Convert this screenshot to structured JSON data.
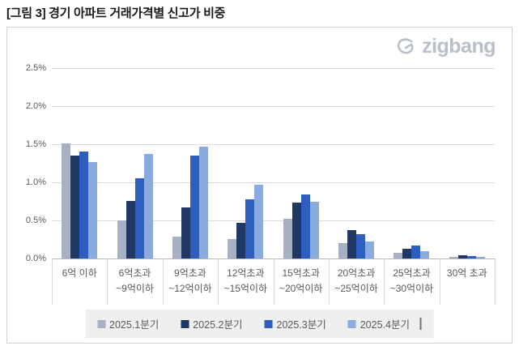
{
  "title": "[그림 3] 경기 아파트 거래가격별 신고가 비중",
  "logo": {
    "text": "zigbang"
  },
  "chart_data": {
    "type": "bar",
    "title": "[그림 3] 경기 아파트 거래가격별 신고가 비중",
    "categories": [
      "6억 이하",
      "6억초과\n~9억이하",
      "9억초과\n~12억이하",
      "12억초과\n~15억이하",
      "15억초과\n~20억이하",
      "20억초과\n~25억이하",
      "25억초과\n~30억이하",
      "30억 초과"
    ],
    "series": [
      {
        "name": "2025.1분기",
        "color": "#a8b1c4",
        "values": [
          1.51,
          0.5,
          0.29,
          0.25,
          0.52,
          0.2,
          0.07,
          0.02
        ]
      },
      {
        "name": "2025.2분기",
        "color": "#1f3864",
        "values": [
          1.35,
          0.75,
          0.67,
          0.47,
          0.73,
          0.37,
          0.13,
          0.04
        ]
      },
      {
        "name": "2025.3분기",
        "color": "#2e5fc0",
        "values": [
          1.4,
          1.05,
          1.35,
          0.78,
          0.84,
          0.32,
          0.17,
          0.03
        ]
      },
      {
        "name": "2025.4분기",
        "color": "#8aabdf",
        "values": [
          1.27,
          1.37,
          1.47,
          0.97,
          0.74,
          0.22,
          0.1,
          0.02
        ]
      }
    ],
    "ylim": [
      0,
      2.5
    ],
    "y_ticks": [
      "0.0%",
      "0.5%",
      "1.0%",
      "1.5%",
      "2.0%",
      "2.5%"
    ],
    "xlabel": "",
    "ylabel": "",
    "grid": true,
    "legend_position": "bottom"
  }
}
